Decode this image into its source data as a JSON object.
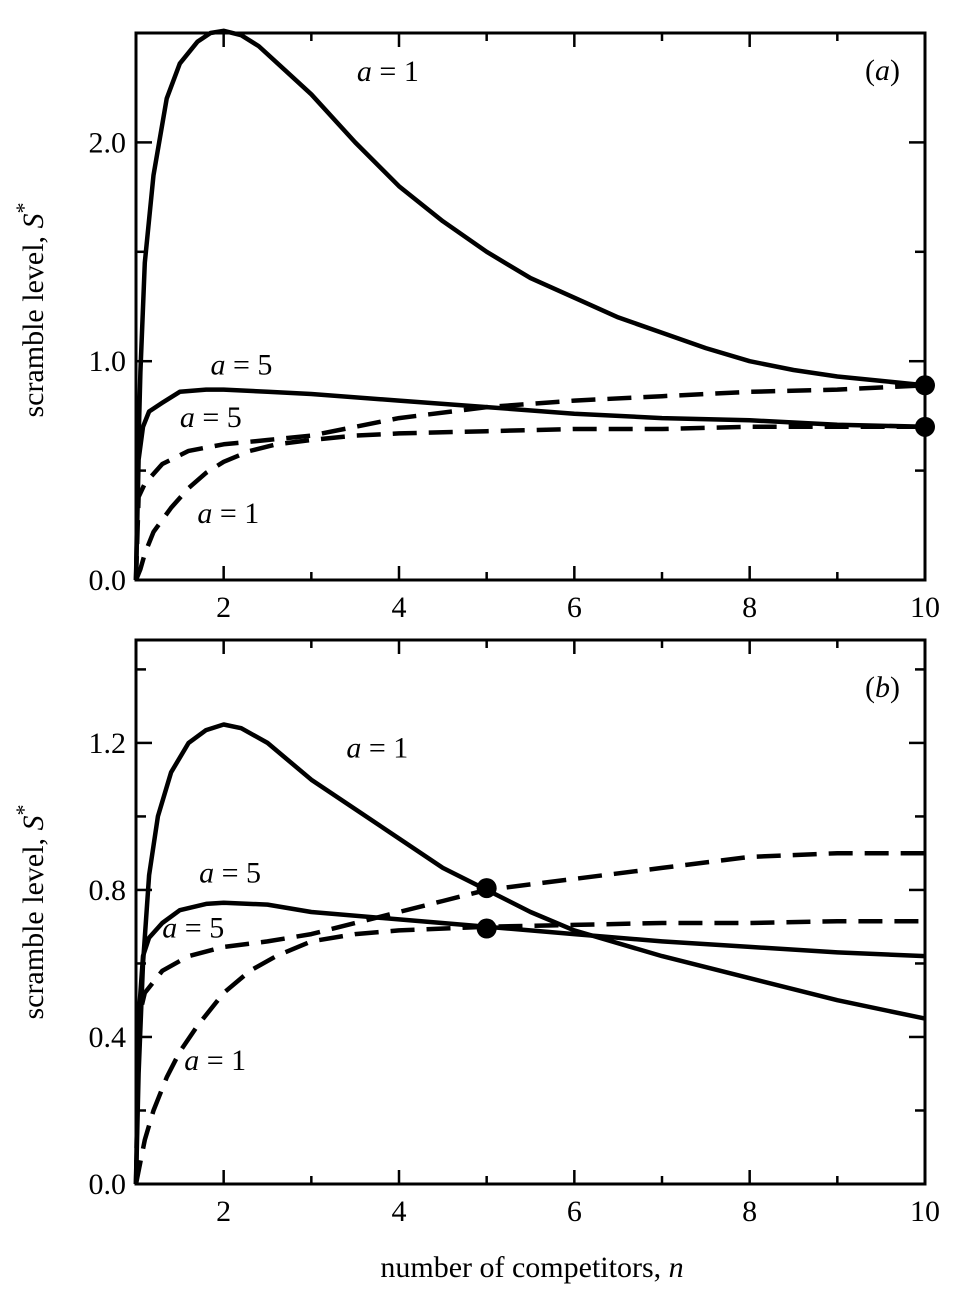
{
  "figure": {
    "xlabel": "number of competitors, n",
    "ylabel": "scramble level, S*"
  },
  "chart_data": [
    {
      "type": "line",
      "panel": "(a)",
      "xlim": [
        1,
        10
      ],
      "ylim": [
        0,
        2.5
      ],
      "xticks": [
        2,
        4,
        6,
        8,
        10
      ],
      "yticks": [
        0.0,
        1.0,
        2.0
      ],
      "ytick_labels": [
        "0.0",
        "1.0",
        "2.0"
      ],
      "xtick_labels": [
        "2",
        "4",
        "6",
        "8",
        "10"
      ],
      "series": [
        {
          "label": "a = 1",
          "style": "solid",
          "x": [
            1.0,
            1.02,
            1.05,
            1.1,
            1.2,
            1.35,
            1.5,
            1.7,
            1.85,
            2.0,
            2.2,
            2.4,
            2.7,
            3.0,
            3.5,
            4.0,
            4.5,
            5.0,
            5.5,
            6.0,
            6.5,
            7.0,
            7.5,
            8.0,
            8.5,
            9.0,
            9.5,
            10.0
          ],
          "y": [
            0.0,
            0.5,
            0.95,
            1.45,
            1.85,
            2.2,
            2.36,
            2.46,
            2.5,
            2.51,
            2.49,
            2.44,
            2.33,
            2.22,
            2.0,
            1.8,
            1.64,
            1.5,
            1.38,
            1.29,
            1.2,
            1.13,
            1.06,
            1.0,
            0.96,
            0.93,
            0.91,
            0.89
          ]
        },
        {
          "label": "a = 5",
          "style": "solid",
          "x": [
            1.0,
            1.03,
            1.08,
            1.15,
            1.3,
            1.5,
            1.8,
            2.0,
            2.5,
            3.0,
            4.0,
            5.0,
            6.0,
            7.0,
            8.0,
            9.0,
            10.0
          ],
          "y": [
            0.0,
            0.55,
            0.7,
            0.77,
            0.81,
            0.86,
            0.87,
            0.87,
            0.86,
            0.85,
            0.82,
            0.79,
            0.76,
            0.74,
            0.73,
            0.71,
            0.7
          ]
        },
        {
          "label": "a = 5",
          "style": "dashed",
          "x": [
            1.0,
            1.03,
            1.1,
            1.3,
            1.6,
            2.0,
            2.5,
            3.0,
            3.5,
            4.0,
            5.0,
            6.0,
            7.0,
            8.0,
            9.0,
            10.0
          ],
          "y": [
            0.0,
            0.38,
            0.44,
            0.53,
            0.59,
            0.62,
            0.64,
            0.66,
            0.7,
            0.74,
            0.79,
            0.82,
            0.84,
            0.86,
            0.87,
            0.89
          ]
        },
        {
          "label": "a = 1",
          "style": "dashed",
          "x": [
            1.0,
            1.05,
            1.1,
            1.2,
            1.4,
            1.6,
            1.8,
            2.0,
            2.3,
            2.6,
            3.0,
            3.5,
            4.0,
            5.0,
            6.0,
            7.0,
            8.0,
            9.0,
            10.0
          ],
          "y": [
            0.0,
            0.05,
            0.12,
            0.22,
            0.33,
            0.42,
            0.49,
            0.54,
            0.59,
            0.62,
            0.64,
            0.66,
            0.67,
            0.68,
            0.69,
            0.69,
            0.7,
            0.7,
            0.7
          ]
        }
      ],
      "markers": [
        {
          "x": 10,
          "y": 0.89
        },
        {
          "x": 10,
          "y": 0.7
        }
      ],
      "annotations": [
        {
          "text": "a = 1",
          "x": 3.52,
          "y": 2.28
        },
        {
          "text": "a = 5",
          "x": 1.85,
          "y": 0.94
        },
        {
          "text": "a = 5",
          "x": 1.5,
          "y": 0.7
        },
        {
          "text": "a = 1",
          "x": 1.7,
          "y": 0.26
        }
      ]
    },
    {
      "type": "line",
      "panel": "(b)",
      "xlim": [
        1,
        10
      ],
      "ylim": [
        0,
        1.48
      ],
      "xticks": [
        2,
        4,
        6,
        8,
        10
      ],
      "yticks": [
        0.0,
        0.4,
        0.8,
        1.2
      ],
      "ytick_labels": [
        "0.0",
        "0.4",
        "0.8",
        "1.2"
      ],
      "xtick_labels": [
        "2",
        "4",
        "6",
        "8",
        "10"
      ],
      "series": [
        {
          "label": "a = 1",
          "style": "solid",
          "x": [
            1.0,
            1.03,
            1.08,
            1.15,
            1.25,
            1.4,
            1.6,
            1.8,
            2.0,
            2.2,
            2.5,
            3.0,
            3.5,
            4.0,
            4.5,
            5.0,
            5.5,
            6.0,
            7.0,
            8.0,
            9.0,
            10.0
          ],
          "y": [
            0.0,
            0.3,
            0.6,
            0.84,
            1.0,
            1.12,
            1.2,
            1.235,
            1.25,
            1.24,
            1.2,
            1.1,
            1.02,
            0.94,
            0.86,
            0.8,
            0.74,
            0.69,
            0.62,
            0.56,
            0.5,
            0.45
          ]
        },
        {
          "label": "a = 5",
          "style": "solid",
          "x": [
            1.0,
            1.03,
            1.08,
            1.15,
            1.3,
            1.5,
            1.8,
            2.0,
            2.5,
            3.0,
            4.0,
            5.0,
            6.0,
            7.0,
            8.0,
            9.0,
            10.0
          ],
          "y": [
            0.0,
            0.45,
            0.62,
            0.67,
            0.71,
            0.745,
            0.762,
            0.765,
            0.76,
            0.74,
            0.72,
            0.7,
            0.68,
            0.66,
            0.645,
            0.63,
            0.62
          ]
        },
        {
          "label": "a = 5",
          "style": "dashed",
          "x": [
            1.0,
            1.03,
            1.1,
            1.3,
            1.6,
            2.0,
            2.5,
            3.0,
            3.5,
            4.0,
            4.5,
            5.0,
            6.0,
            7.0,
            8.0,
            9.0,
            10.0
          ],
          "y": [
            0.0,
            0.45,
            0.52,
            0.58,
            0.62,
            0.645,
            0.66,
            0.68,
            0.71,
            0.74,
            0.77,
            0.8,
            0.83,
            0.86,
            0.89,
            0.9,
            0.9
          ]
        },
        {
          "label": "a = 1",
          "style": "dashed",
          "x": [
            1.0,
            1.05,
            1.1,
            1.2,
            1.35,
            1.5,
            1.7,
            2.0,
            2.3,
            2.6,
            3.0,
            3.5,
            4.0,
            5.0,
            6.0,
            7.0,
            8.0,
            9.0,
            10.0
          ],
          "y": [
            0.0,
            0.06,
            0.12,
            0.2,
            0.29,
            0.36,
            0.43,
            0.52,
            0.58,
            0.62,
            0.66,
            0.68,
            0.69,
            0.7,
            0.705,
            0.71,
            0.71,
            0.715,
            0.715
          ]
        }
      ],
      "markers": [
        {
          "x": 5,
          "y": 0.805
        },
        {
          "x": 5,
          "y": 0.695
        }
      ],
      "annotations": [
        {
          "text": "a = 1",
          "x": 3.4,
          "y": 1.16
        },
        {
          "text": "a = 5",
          "x": 1.72,
          "y": 0.82
        },
        {
          "text": "a = 5",
          "x": 1.3,
          "y": 0.67
        },
        {
          "text": "a = 1",
          "x": 1.55,
          "y": 0.31
        }
      ]
    }
  ]
}
